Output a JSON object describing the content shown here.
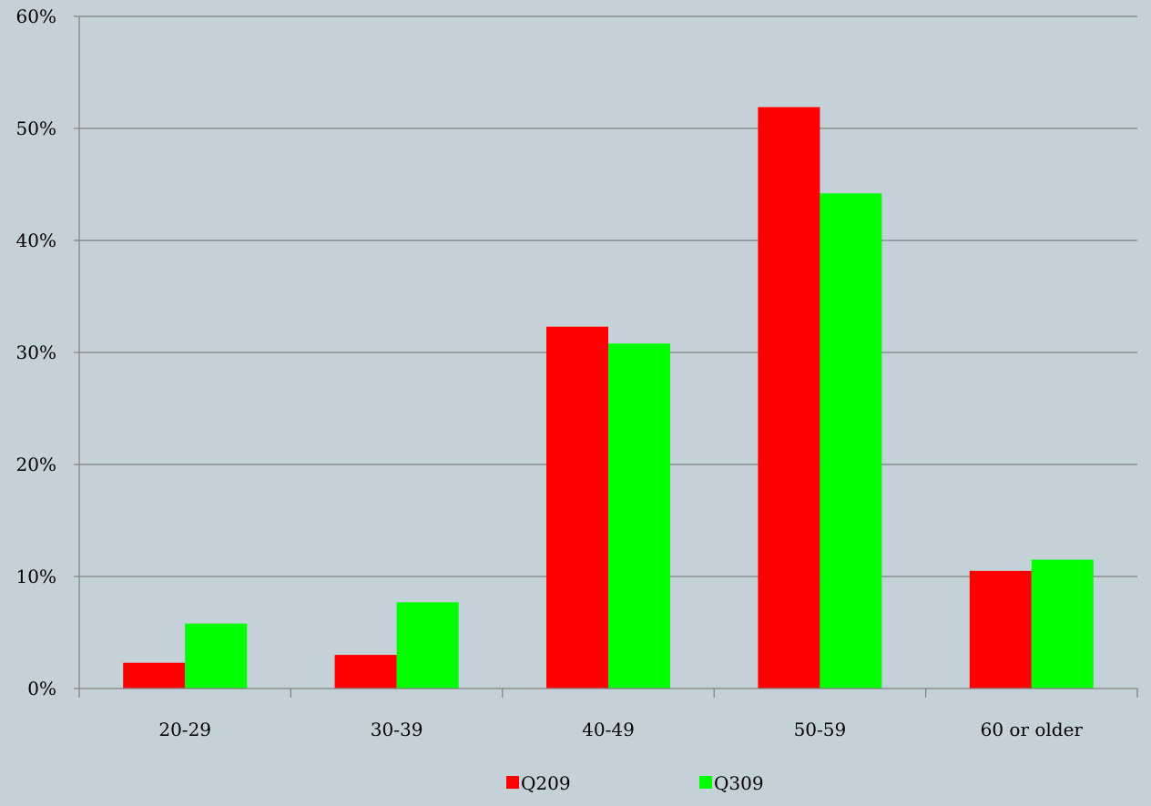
{
  "chart_data": {
    "type": "bar",
    "categories": [
      "20-29",
      "30-39",
      "40-49",
      "50-59",
      "60 or older"
    ],
    "series": [
      {
        "name": "Q209",
        "values": [
          2.3,
          3.0,
          32.3,
          51.9,
          10.5
        ]
      },
      {
        "name": "Q309",
        "values": [
          5.8,
          7.7,
          30.8,
          44.2,
          11.5
        ]
      }
    ],
    "y_tick_values": [
      0,
      10,
      20,
      30,
      40,
      50,
      60
    ],
    "y_tick_labels": [
      "0%",
      "10%",
      "20%",
      "30%",
      "40%",
      "50%",
      "60%"
    ],
    "ylim": [
      0,
      60
    ],
    "y_unit": "percent",
    "title": "",
    "xlabel": "",
    "ylabel": "",
    "grid": true,
    "legend_position": "bottom",
    "colors": {
      "background": "#c5d1d9",
      "gridline": "#808080",
      "axis": "#808080",
      "series": [
        "#ff0000",
        "#00ff00"
      ]
    }
  }
}
